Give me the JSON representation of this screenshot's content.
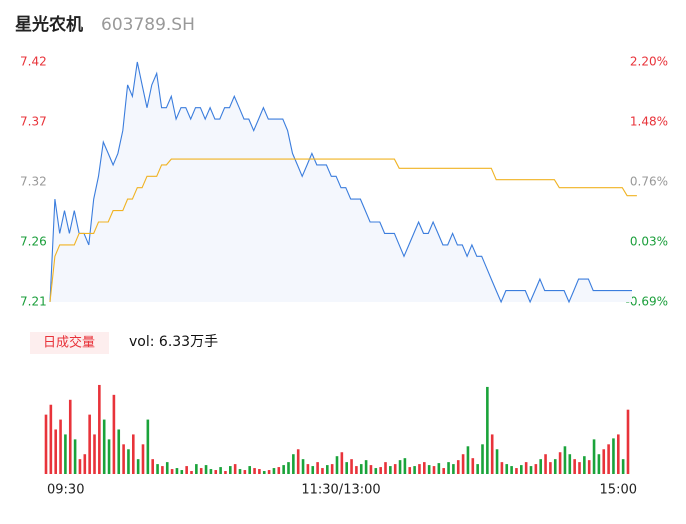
{
  "header": {
    "name": "星光农机",
    "code": "603789.SH"
  },
  "chart_data": {
    "type": "intraday",
    "xlim": [
      0,
      120
    ],
    "xticks": [
      {
        "value": 0,
        "label": "09:30"
      },
      {
        "value": 60,
        "label": "11:30/13:00"
      },
      {
        "value": 120,
        "label": "15:00"
      }
    ],
    "ylim": [
      7.21,
      7.42
    ],
    "yticks": [
      {
        "value": 7.42,
        "label": "7.42"
      },
      {
        "value": 7.3675,
        "label": "7.37"
      },
      {
        "value": 7.315,
        "label": "7.32"
      },
      {
        "value": 7.2625,
        "label": "7.26"
      },
      {
        "value": 7.21,
        "label": "7.21"
      }
    ],
    "y2lim": [
      -0.69,
      2.2
    ],
    "y2ticks": [
      {
        "value": 2.2,
        "label": "2.20%"
      },
      {
        "value": 1.4775,
        "label": "1.48%"
      },
      {
        "value": 0.755,
        "label": "0.76%"
      },
      {
        "value": 0.0325,
        "label": "0.03%"
      },
      {
        "value": -0.69,
        "label": "-0.69%"
      }
    ],
    "tick_colors": [
      "#e8333a",
      "#e8333a",
      "#999999",
      "#1a9e3a",
      "#1a9e3a"
    ],
    "grid": false,
    "series": [
      {
        "color": "#3b7ddd",
        "fill": "#f4f7fd",
        "values": [
          7.21,
          7.3,
          7.27,
          7.29,
          7.27,
          7.29,
          7.27,
          7.27,
          7.26,
          7.3,
          7.32,
          7.35,
          7.34,
          7.33,
          7.34,
          7.36,
          7.4,
          7.39,
          7.42,
          7.4,
          7.38,
          7.4,
          7.41,
          7.38,
          7.38,
          7.39,
          7.37,
          7.38,
          7.38,
          7.37,
          7.38,
          7.38,
          7.37,
          7.38,
          7.37,
          7.37,
          7.38,
          7.38,
          7.39,
          7.38,
          7.37,
          7.37,
          7.36,
          7.37,
          7.38,
          7.37,
          7.37,
          7.37,
          7.37,
          7.36,
          7.34,
          7.33,
          7.32,
          7.33,
          7.34,
          7.33,
          7.33,
          7.33,
          7.32,
          7.32,
          7.31,
          7.31,
          7.3,
          7.3,
          7.3,
          7.29,
          7.28,
          7.28,
          7.28,
          7.27,
          7.27,
          7.27,
          7.26,
          7.25,
          7.26,
          7.27,
          7.28,
          7.27,
          7.27,
          7.28,
          7.27,
          7.26,
          7.26,
          7.27,
          7.26,
          7.26,
          7.25,
          7.26,
          7.25,
          7.25,
          7.24,
          7.23,
          7.22,
          7.21,
          7.22,
          7.22,
          7.22,
          7.22,
          7.22,
          7.21,
          7.22,
          7.23,
          7.22,
          7.22,
          7.22,
          7.22,
          7.22,
          7.21,
          7.22,
          7.23,
          7.23,
          7.23,
          7.22,
          7.22,
          7.22,
          7.22,
          7.22,
          7.22,
          7.22,
          7.22,
          7.22
        ]
      },
      {
        "color": "#f0b323",
        "values": [
          7.21,
          7.25,
          7.26,
          7.26,
          7.26,
          7.26,
          7.27,
          7.27,
          7.27,
          7.27,
          7.28,
          7.28,
          7.28,
          7.29,
          7.29,
          7.29,
          7.3,
          7.3,
          7.31,
          7.31,
          7.32,
          7.32,
          7.32,
          7.33,
          7.33,
          7.335,
          7.335,
          7.335,
          7.335,
          7.335,
          7.335,
          7.335,
          7.335,
          7.335,
          7.335,
          7.335,
          7.335,
          7.335,
          7.335,
          7.335,
          7.335,
          7.335,
          7.335,
          7.335,
          7.335,
          7.335,
          7.335,
          7.335,
          7.335,
          7.335,
          7.335,
          7.335,
          7.335,
          7.335,
          7.335,
          7.335,
          7.335,
          7.335,
          7.335,
          7.335,
          7.335,
          7.335,
          7.335,
          7.335,
          7.335,
          7.335,
          7.335,
          7.335,
          7.335,
          7.335,
          7.335,
          7.335,
          7.327,
          7.327,
          7.327,
          7.327,
          7.327,
          7.327,
          7.327,
          7.327,
          7.327,
          7.327,
          7.327,
          7.327,
          7.327,
          7.327,
          7.327,
          7.327,
          7.327,
          7.327,
          7.327,
          7.327,
          7.317,
          7.317,
          7.317,
          7.317,
          7.317,
          7.317,
          7.317,
          7.317,
          7.317,
          7.317,
          7.317,
          7.317,
          7.317,
          7.31,
          7.31,
          7.31,
          7.31,
          7.31,
          7.31,
          7.31,
          7.31,
          7.31,
          7.31,
          7.31,
          7.31,
          7.31,
          7.31,
          7.303,
          7.303,
          7.303
        ]
      }
    ],
    "volume": {
      "legend": "日成交量",
      "label": "vol: 6.33万手",
      "ylim": [
        0,
        95
      ],
      "up_color": "#e8333a",
      "down_color": "#1aa33a",
      "values": [
        60,
        70,
        45,
        55,
        40,
        75,
        35,
        15,
        20,
        60,
        40,
        90,
        55,
        35,
        80,
        45,
        30,
        25,
        40,
        15,
        30,
        55,
        15,
        10,
        8,
        12,
        5,
        6,
        4,
        8,
        3,
        10,
        6,
        9,
        5,
        4,
        7,
        3,
        8,
        10,
        5,
        4,
        8,
        6,
        5,
        3,
        4,
        6,
        7,
        9,
        12,
        20,
        25,
        15,
        10,
        8,
        12,
        6,
        9,
        10,
        18,
        22,
        12,
        15,
        8,
        10,
        14,
        9,
        6,
        7,
        12,
        8,
        10,
        14,
        16,
        7,
        8,
        10,
        12,
        9,
        8,
        11,
        6,
        12,
        10,
        14,
        20,
        28,
        16,
        10,
        30,
        88,
        40,
        25,
        12,
        10,
        8,
        6,
        9,
        12,
        8,
        10,
        15,
        20,
        12,
        15,
        22,
        28,
        20,
        15,
        12,
        18,
        14,
        35,
        20,
        25,
        30,
        36,
        40,
        15,
        65
      ],
      "up": [
        1,
        1,
        1,
        1,
        0,
        1,
        0,
        1,
        1,
        1,
        1,
        1,
        0,
        0,
        1,
        0,
        1,
        0,
        1,
        0,
        1,
        0,
        1,
        0,
        1,
        0,
        1,
        0,
        0,
        1,
        1,
        0,
        1,
        0,
        0,
        1,
        0,
        1,
        0,
        1,
        0,
        1,
        0,
        1,
        1,
        0,
        1,
        0,
        1,
        0,
        0,
        0,
        1,
        0,
        1,
        0,
        1,
        1,
        0,
        1,
        0,
        1,
        0,
        1,
        1,
        0,
        0,
        1,
        0,
        1,
        1,
        0,
        1,
        0,
        0,
        1,
        0,
        1,
        1,
        0,
        1,
        0,
        1,
        0,
        0,
        1,
        1,
        0,
        1,
        0,
        0,
        0,
        1,
        0,
        1,
        0,
        0,
        1,
        0,
        1,
        0,
        1,
        0,
        1,
        1,
        0,
        1,
        0,
        0,
        1,
        1,
        0,
        1,
        0,
        0,
        1,
        1,
        0,
        1,
        0,
        1
      ]
    }
  }
}
